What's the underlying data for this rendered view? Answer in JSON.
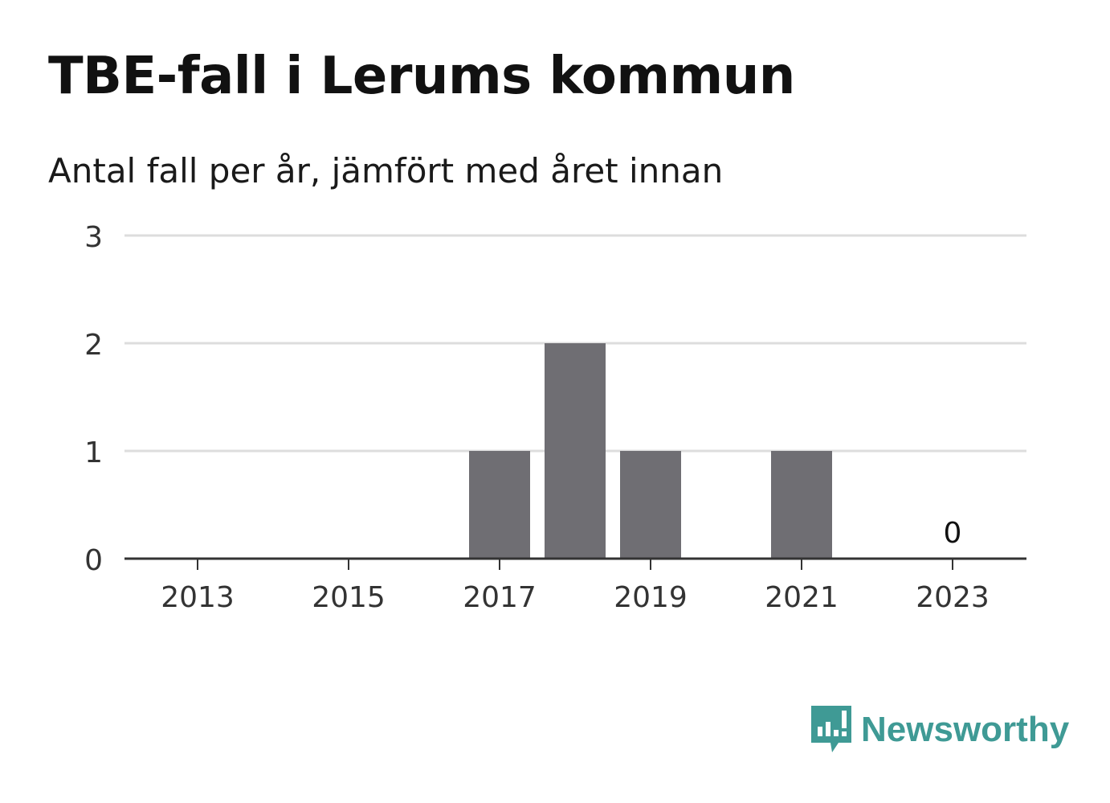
{
  "title": "TBE-fall i Lerums kommun",
  "subtitle": "Antal fall per år, jämfört med året innan",
  "brand": {
    "name": "Newsworthy",
    "color": "#3f9a95",
    "icon": "bar-chart-speech-bubble-icon"
  },
  "chart_data": {
    "type": "bar",
    "categories": [
      "2013",
      "2014",
      "2015",
      "2016",
      "2017",
      "2018",
      "2019",
      "2020",
      "2021",
      "2022",
      "2023"
    ],
    "values": [
      0,
      0,
      0,
      0,
      1,
      2,
      1,
      0,
      1,
      0,
      0
    ],
    "x_tick_labels": [
      "2013",
      "2015",
      "2017",
      "2019",
      "2021",
      "2023"
    ],
    "y_ticks": [
      0,
      1,
      2,
      3
    ],
    "ylim": [
      0,
      3
    ],
    "data_labels": [
      {
        "category": "2023",
        "text": "0"
      }
    ],
    "bar_color": "#6f6e73",
    "grid": true,
    "xlabel": "",
    "ylabel": ""
  }
}
